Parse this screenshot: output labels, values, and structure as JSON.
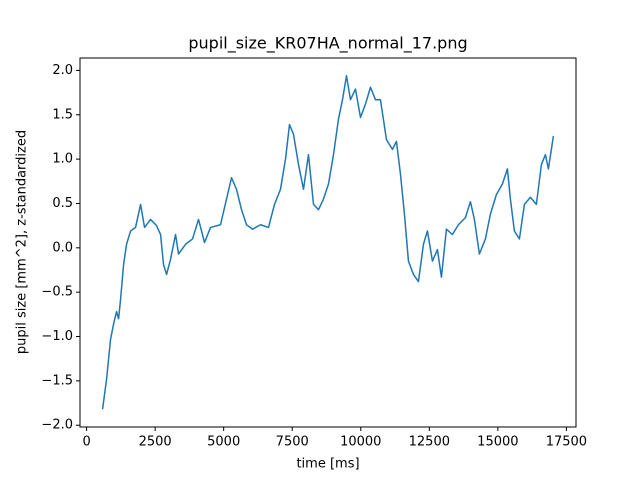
{
  "chart_data": {
    "type": "line",
    "title": "pupil_size_KR07HA_normal_17.png",
    "x_label": "time [ms]",
    "y_label": "pupil size [mm^2], z-standardized",
    "x": [
      583,
      729,
      875,
      984,
      1094,
      1167,
      1240,
      1349,
      1458,
      1604,
      1786,
      1969,
      2114,
      2333,
      2552,
      2698,
      2807,
      2917,
      3062,
      3245,
      3354,
      3609,
      3864,
      4083,
      4302,
      4521,
      4885,
      5104,
      5286,
      5469,
      5651,
      5833,
      6052,
      6344,
      6635,
      6854,
      7073,
      7255,
      7401,
      7546,
      7729,
      7911,
      8093,
      8276,
      8458,
      8640,
      8823,
      9005,
      9187,
      9333,
      9479,
      9625,
      9807,
      9990,
      10172,
      10354,
      10536,
      10718,
      10937,
      11156,
      11302,
      11448,
      11593,
      11739,
      11921,
      12104,
      12286,
      12432,
      12614,
      12796,
      12942,
      13124,
      13343,
      13562,
      13817,
      13999,
      14145,
      14327,
      14546,
      14728,
      14947,
      15166,
      15348,
      15457,
      15603,
      15786,
      15968,
      16187,
      16405,
      16588,
      16734,
      16843,
      16952,
      17025
    ],
    "series": [
      {
        "color": "#1f77b4",
        "values": [
          -1.82,
          -1.48,
          -1.03,
          -0.86,
          -0.72,
          -0.8,
          -0.58,
          -0.19,
          0.04,
          0.19,
          0.23,
          0.49,
          0.23,
          0.32,
          0.25,
          0.15,
          -0.19,
          -0.3,
          -0.13,
          0.15,
          -0.07,
          0.04,
          0.1,
          0.32,
          0.06,
          0.23,
          0.26,
          0.55,
          0.79,
          0.66,
          0.43,
          0.26,
          0.21,
          0.26,
          0.23,
          0.49,
          0.66,
          1.0,
          1.39,
          1.28,
          0.94,
          0.66,
          1.05,
          0.49,
          0.43,
          0.55,
          0.72,
          1.05,
          1.45,
          1.67,
          1.94,
          1.67,
          1.79,
          1.47,
          1.62,
          1.81,
          1.67,
          1.67,
          1.22,
          1.11,
          1.2,
          0.83,
          0.38,
          -0.15,
          -0.3,
          -0.38,
          0.04,
          0.19,
          -0.15,
          -0.02,
          -0.33,
          0.21,
          0.15,
          0.26,
          0.34,
          0.52,
          0.32,
          -0.07,
          0.1,
          0.38,
          0.6,
          0.72,
          0.89,
          0.55,
          0.19,
          0.1,
          0.49,
          0.57,
          0.49,
          0.94,
          1.05,
          0.89,
          1.11,
          1.26
        ]
      }
    ],
    "xlim": [
      -240,
      17850
    ],
    "xticks": [
      0,
      2500,
      5000,
      7500,
      10000,
      12500,
      15000,
      17500
    ],
    "ylim": [
      -2.02,
      2.14
    ],
    "yticks": [
      {
        "value": -2,
        "label": "−2.0"
      },
      {
        "value": -1.5,
        "label": "−1.5"
      },
      {
        "value": -1,
        "label": "−1.0"
      },
      {
        "value": -0.5,
        "label": "−0.5"
      },
      {
        "value": 0,
        "label": "0.0"
      },
      {
        "value": 0.5,
        "label": "0.5"
      },
      {
        "value": 1,
        "label": "1.0"
      },
      {
        "value": 1.5,
        "label": "1.5"
      },
      {
        "value": 2,
        "label": "2.0"
      }
    ]
  }
}
